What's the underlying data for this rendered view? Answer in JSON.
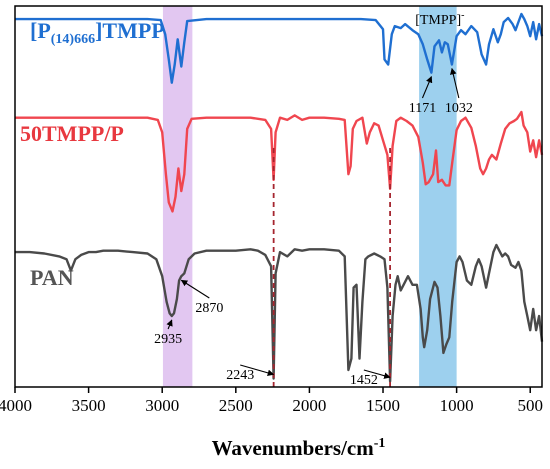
{
  "chart_data": {
    "type": "line",
    "title": "",
    "xlabel": "Wavenumbers/cm",
    "xlabel_sup": "-1",
    "ylabel": "",
    "xlim": [
      4000,
      420
    ],
    "x_reversed": true,
    "grid": false,
    "y_ticks_shown": false,
    "x_ticks": [
      4000,
      3500,
      3000,
      2500,
      2000,
      1500,
      1000,
      500
    ],
    "x_tick_labels": [
      "4000",
      "3500",
      "3000",
      "2500",
      "2000",
      "1500",
      "1000",
      "500"
    ],
    "series": [
      {
        "label_base": "[P",
        "label_sub": "(14)666",
        "label_tail": "]TMPP",
        "color": "#1f6fd1",
        "label_color": "#1f6fd1",
        "points": [
          [
            4000,
            0.95
          ],
          [
            3800,
            0.95
          ],
          [
            3600,
            0.95
          ],
          [
            3400,
            0.95
          ],
          [
            3200,
            0.95
          ],
          [
            3100,
            0.95
          ],
          [
            3010,
            0.94
          ],
          [
            2980,
            0.8
          ],
          [
            2955,
            0.55
          ],
          [
            2935,
            0.32
          ],
          [
            2915,
            0.5
          ],
          [
            2895,
            0.75
          ],
          [
            2870,
            0.48
          ],
          [
            2850,
            0.72
          ],
          [
            2830,
            0.93
          ],
          [
            2700,
            0.95
          ],
          [
            2400,
            0.95
          ],
          [
            2100,
            0.95
          ],
          [
            1800,
            0.95
          ],
          [
            1650,
            0.95
          ],
          [
            1550,
            0.94
          ],
          [
            1500,
            0.85
          ],
          [
            1490,
            0.55
          ],
          [
            1465,
            0.5
          ],
          [
            1440,
            0.8
          ],
          [
            1420,
            0.88
          ],
          [
            1380,
            0.86
          ],
          [
            1350,
            0.9
          ],
          [
            1300,
            0.84
          ],
          [
            1260,
            0.8
          ],
          [
            1230,
            0.7
          ],
          [
            1200,
            0.55
          ],
          [
            1171,
            0.42
          ],
          [
            1150,
            0.68
          ],
          [
            1120,
            0.74
          ],
          [
            1100,
            0.62
          ],
          [
            1080,
            0.72
          ],
          [
            1060,
            0.7
          ],
          [
            1032,
            0.5
          ],
          [
            1000,
            0.78
          ],
          [
            970,
            0.84
          ],
          [
            940,
            0.8
          ],
          [
            900,
            0.88
          ],
          [
            860,
            0.82
          ],
          [
            830,
            0.6
          ],
          [
            800,
            0.5
          ],
          [
            780,
            0.7
          ],
          [
            750,
            0.85
          ],
          [
            720,
            0.72
          ],
          [
            700,
            0.8
          ],
          [
            680,
            0.92
          ],
          [
            650,
            0.96
          ],
          [
            620,
            0.9
          ],
          [
            600,
            0.84
          ],
          [
            580,
            0.92
          ],
          [
            560,
            1.0
          ],
          [
            540,
            0.95
          ],
          [
            520,
            0.88
          ],
          [
            500,
            0.78
          ],
          [
            480,
            0.92
          ],
          [
            460,
            0.75
          ],
          [
            440,
            0.9
          ],
          [
            420,
            0.78
          ]
        ]
      },
      {
        "label_base": "50TMPP/P",
        "label_sub": "",
        "label_tail": "",
        "color": "#f0464f",
        "label_color": "#e8383f",
        "points": [
          [
            4000,
            0.95
          ],
          [
            3800,
            0.95
          ],
          [
            3600,
            0.95
          ],
          [
            3400,
            0.95
          ],
          [
            3200,
            0.95
          ],
          [
            3100,
            0.95
          ],
          [
            3030,
            0.93
          ],
          [
            3000,
            0.82
          ],
          [
            2975,
            0.45
          ],
          [
            2955,
            0.2
          ],
          [
            2930,
            0.12
          ],
          [
            2910,
            0.25
          ],
          [
            2890,
            0.5
          ],
          [
            2870,
            0.3
          ],
          [
            2850,
            0.45
          ],
          [
            2830,
            0.85
          ],
          [
            2800,
            0.94
          ],
          [
            2700,
            0.95
          ],
          [
            2500,
            0.95
          ],
          [
            2400,
            0.95
          ],
          [
            2300,
            0.93
          ],
          [
            2260,
            0.85
          ],
          [
            2243,
            0.4
          ],
          [
            2230,
            0.82
          ],
          [
            2200,
            0.95
          ],
          [
            2150,
            0.93
          ],
          [
            2100,
            0.97
          ],
          [
            2050,
            0.93
          ],
          [
            2000,
            0.95
          ],
          [
            1900,
            0.95
          ],
          [
            1800,
            0.94
          ],
          [
            1760,
            0.93
          ],
          [
            1735,
            0.45
          ],
          [
            1720,
            0.52
          ],
          [
            1705,
            0.85
          ],
          [
            1680,
            0.92
          ],
          [
            1640,
            0.95
          ],
          [
            1610,
            0.72
          ],
          [
            1590,
            0.82
          ],
          [
            1560,
            0.9
          ],
          [
            1530,
            0.88
          ],
          [
            1500,
            0.75
          ],
          [
            1470,
            0.62
          ],
          [
            1452,
            0.32
          ],
          [
            1435,
            0.7
          ],
          [
            1410,
            0.92
          ],
          [
            1380,
            0.95
          ],
          [
            1340,
            0.92
          ],
          [
            1300,
            0.88
          ],
          [
            1260,
            0.78
          ],
          [
            1230,
            0.55
          ],
          [
            1210,
            0.36
          ],
          [
            1190,
            0.38
          ],
          [
            1160,
            0.45
          ],
          [
            1140,
            0.66
          ],
          [
            1125,
            0.38
          ],
          [
            1100,
            0.4
          ],
          [
            1075,
            0.35
          ],
          [
            1050,
            0.35
          ],
          [
            1030,
            0.55
          ],
          [
            1000,
            0.84
          ],
          [
            970,
            0.92
          ],
          [
            940,
            0.95
          ],
          [
            900,
            0.86
          ],
          [
            870,
            0.7
          ],
          [
            840,
            0.5
          ],
          [
            820,
            0.45
          ],
          [
            800,
            0.5
          ],
          [
            780,
            0.58
          ],
          [
            760,
            0.62
          ],
          [
            730,
            0.58
          ],
          [
            700,
            0.72
          ],
          [
            670,
            0.85
          ],
          [
            640,
            0.9
          ],
          [
            610,
            0.92
          ],
          [
            590,
            0.94
          ],
          [
            560,
            1.0
          ],
          [
            545,
            0.88
          ],
          [
            520,
            0.82
          ],
          [
            500,
            0.65
          ],
          [
            480,
            0.75
          ],
          [
            460,
            0.6
          ],
          [
            440,
            0.75
          ],
          [
            420,
            0.62
          ]
        ]
      },
      {
        "label_base": "PAN",
        "label_sub": "",
        "label_tail": "",
        "color": "#4a4a4a",
        "label_color": "#555555",
        "points": [
          [
            4000,
            0.95
          ],
          [
            3900,
            0.95
          ],
          [
            3800,
            0.94
          ],
          [
            3700,
            0.92
          ],
          [
            3650,
            0.9
          ],
          [
            3620,
            0.82
          ],
          [
            3590,
            0.9
          ],
          [
            3550,
            0.93
          ],
          [
            3500,
            0.95
          ],
          [
            3450,
            0.95
          ],
          [
            3400,
            0.96
          ],
          [
            3300,
            0.96
          ],
          [
            3200,
            0.95
          ],
          [
            3100,
            0.94
          ],
          [
            3040,
            0.9
          ],
          [
            3000,
            0.78
          ],
          [
            2970,
            0.6
          ],
          [
            2950,
            0.52
          ],
          [
            2935,
            0.5
          ],
          [
            2920,
            0.52
          ],
          [
            2900,
            0.62
          ],
          [
            2885,
            0.75
          ],
          [
            2870,
            0.78
          ],
          [
            2850,
            0.8
          ],
          [
            2820,
            0.9
          ],
          [
            2780,
            0.94
          ],
          [
            2700,
            0.96
          ],
          [
            2600,
            0.96
          ],
          [
            2500,
            0.96
          ],
          [
            2400,
            0.97
          ],
          [
            2350,
            0.96
          ],
          [
            2300,
            0.93
          ],
          [
            2260,
            0.85
          ],
          [
            2243,
            0.06
          ],
          [
            2230,
            0.8
          ],
          [
            2200,
            0.95
          ],
          [
            2150,
            0.92
          ],
          [
            2100,
            0.97
          ],
          [
            2050,
            0.96
          ],
          [
            2000,
            0.97
          ],
          [
            1900,
            0.97
          ],
          [
            1800,
            0.96
          ],
          [
            1760,
            0.92
          ],
          [
            1735,
            0.12
          ],
          [
            1715,
            0.2
          ],
          [
            1700,
            0.7
          ],
          [
            1680,
            0.72
          ],
          [
            1660,
            0.2
          ],
          [
            1640,
            0.6
          ],
          [
            1620,
            0.9
          ],
          [
            1600,
            0.92
          ],
          [
            1560,
            0.94
          ],
          [
            1520,
            0.92
          ],
          [
            1490,
            0.9
          ],
          [
            1470,
            0.7
          ],
          [
            1452,
            0.04
          ],
          [
            1435,
            0.5
          ],
          [
            1415,
            0.72
          ],
          [
            1400,
            0.78
          ],
          [
            1380,
            0.68
          ],
          [
            1360,
            0.72
          ],
          [
            1330,
            0.78
          ],
          [
            1300,
            0.72
          ],
          [
            1270,
            0.72
          ],
          [
            1245,
            0.55
          ],
          [
            1230,
            0.35
          ],
          [
            1220,
            0.28
          ],
          [
            1200,
            0.4
          ],
          [
            1180,
            0.62
          ],
          [
            1150,
            0.74
          ],
          [
            1130,
            0.7
          ],
          [
            1110,
            0.5
          ],
          [
            1090,
            0.24
          ],
          [
            1070,
            0.3
          ],
          [
            1050,
            0.35
          ],
          [
            1030,
            0.6
          ],
          [
            1000,
            0.88
          ],
          [
            980,
            0.92
          ],
          [
            960,
            0.88
          ],
          [
            930,
            0.75
          ],
          [
            900,
            0.72
          ],
          [
            870,
            0.85
          ],
          [
            850,
            0.9
          ],
          [
            830,
            0.85
          ],
          [
            800,
            0.7
          ],
          [
            780,
            0.8
          ],
          [
            750,
            0.95
          ],
          [
            730,
            1.0
          ],
          [
            710,
            0.96
          ],
          [
            690,
            0.92
          ],
          [
            670,
            0.94
          ],
          [
            650,
            0.92
          ],
          [
            630,
            0.86
          ],
          [
            600,
            0.84
          ],
          [
            580,
            0.88
          ],
          [
            560,
            0.82
          ],
          [
            540,
            0.6
          ],
          [
            520,
            0.5
          ],
          [
            500,
            0.4
          ],
          [
            480,
            0.55
          ],
          [
            460,
            0.4
          ],
          [
            440,
            0.5
          ],
          [
            420,
            0.32
          ]
        ]
      }
    ],
    "shaded_bands": [
      {
        "x_range": [
          2995,
          2795
        ],
        "color": "#d8b4ec"
      },
      {
        "x_range": [
          1255,
          1000
        ],
        "color": "#7cc0e8",
        "label_main": "[TMPP]",
        "label_sup": "-"
      }
    ],
    "dashed_lines": [
      {
        "x": 2243,
        "color": "#a5252f"
      },
      {
        "x": 1452,
        "color": "#a5252f"
      }
    ],
    "annotations": [
      {
        "text": "1171",
        "series": 0,
        "x": 1171
      },
      {
        "text": "1032",
        "series": 0,
        "x": 1032
      },
      {
        "text": "2935",
        "series": 2,
        "x": 2935
      },
      {
        "text": "2870",
        "series": 2,
        "x": 2870
      },
      {
        "text": "2243",
        "series": 2,
        "x": 2243
      },
      {
        "text": "1452",
        "series": 2,
        "x": 1452
      }
    ]
  }
}
